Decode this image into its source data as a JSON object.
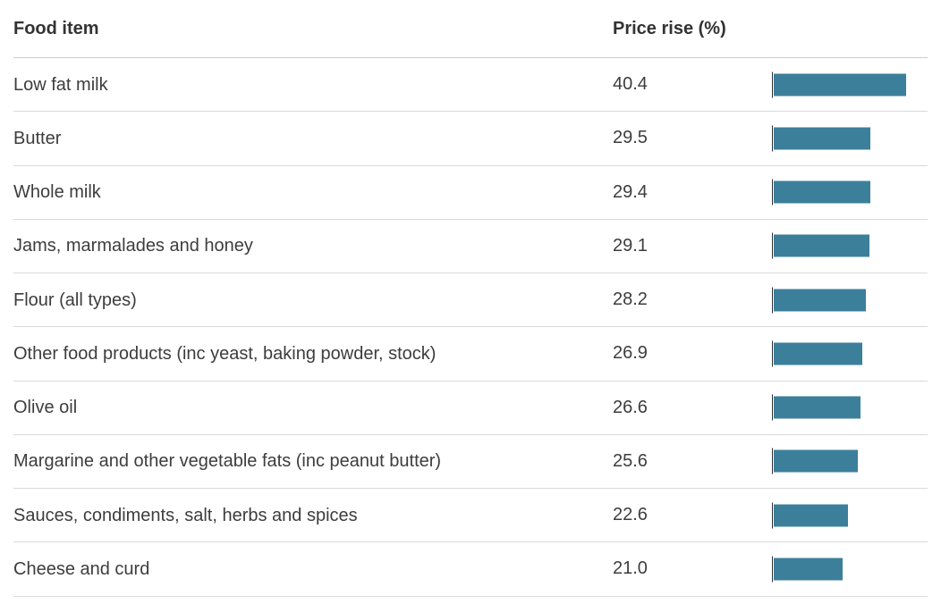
{
  "table": {
    "columns": [
      {
        "label": "Food item"
      },
      {
        "label": "Price rise (%)"
      }
    ]
  },
  "chart_data": {
    "type": "bar",
    "orientation": "horizontal",
    "title": "",
    "xlabel": "Price rise (%)",
    "ylabel": "Food item",
    "categories": [
      "Low fat milk",
      "Butter",
      "Whole milk",
      "Jams, marmalades and honey",
      "Flour (all types)",
      "Other food products (inc yeast, baking powder, stock)",
      "Olive oil",
      "Margarine and other vegetable fats (inc peanut butter)",
      "Sauces, condiments, salt, herbs and spices",
      "Cheese and curd"
    ],
    "values": [
      40.4,
      29.5,
      29.4,
      29.1,
      28.2,
      26.9,
      26.6,
      25.6,
      22.6,
      21.0
    ],
    "value_labels": [
      "40.4",
      "29.5",
      "29.4",
      "29.1",
      "28.2",
      "26.9",
      "26.6",
      "25.6",
      "22.6",
      "21.0"
    ],
    "xlim": [
      0,
      47.5
    ],
    "grid": "off",
    "legend": "none",
    "bar_color": "#3c7f9b"
  },
  "colors": {
    "bar": "#3c7f9b",
    "text": "#3d3d3d",
    "divider": "#dadada",
    "header-divider": "#cccccc",
    "axis": "#2e2e2e"
  }
}
